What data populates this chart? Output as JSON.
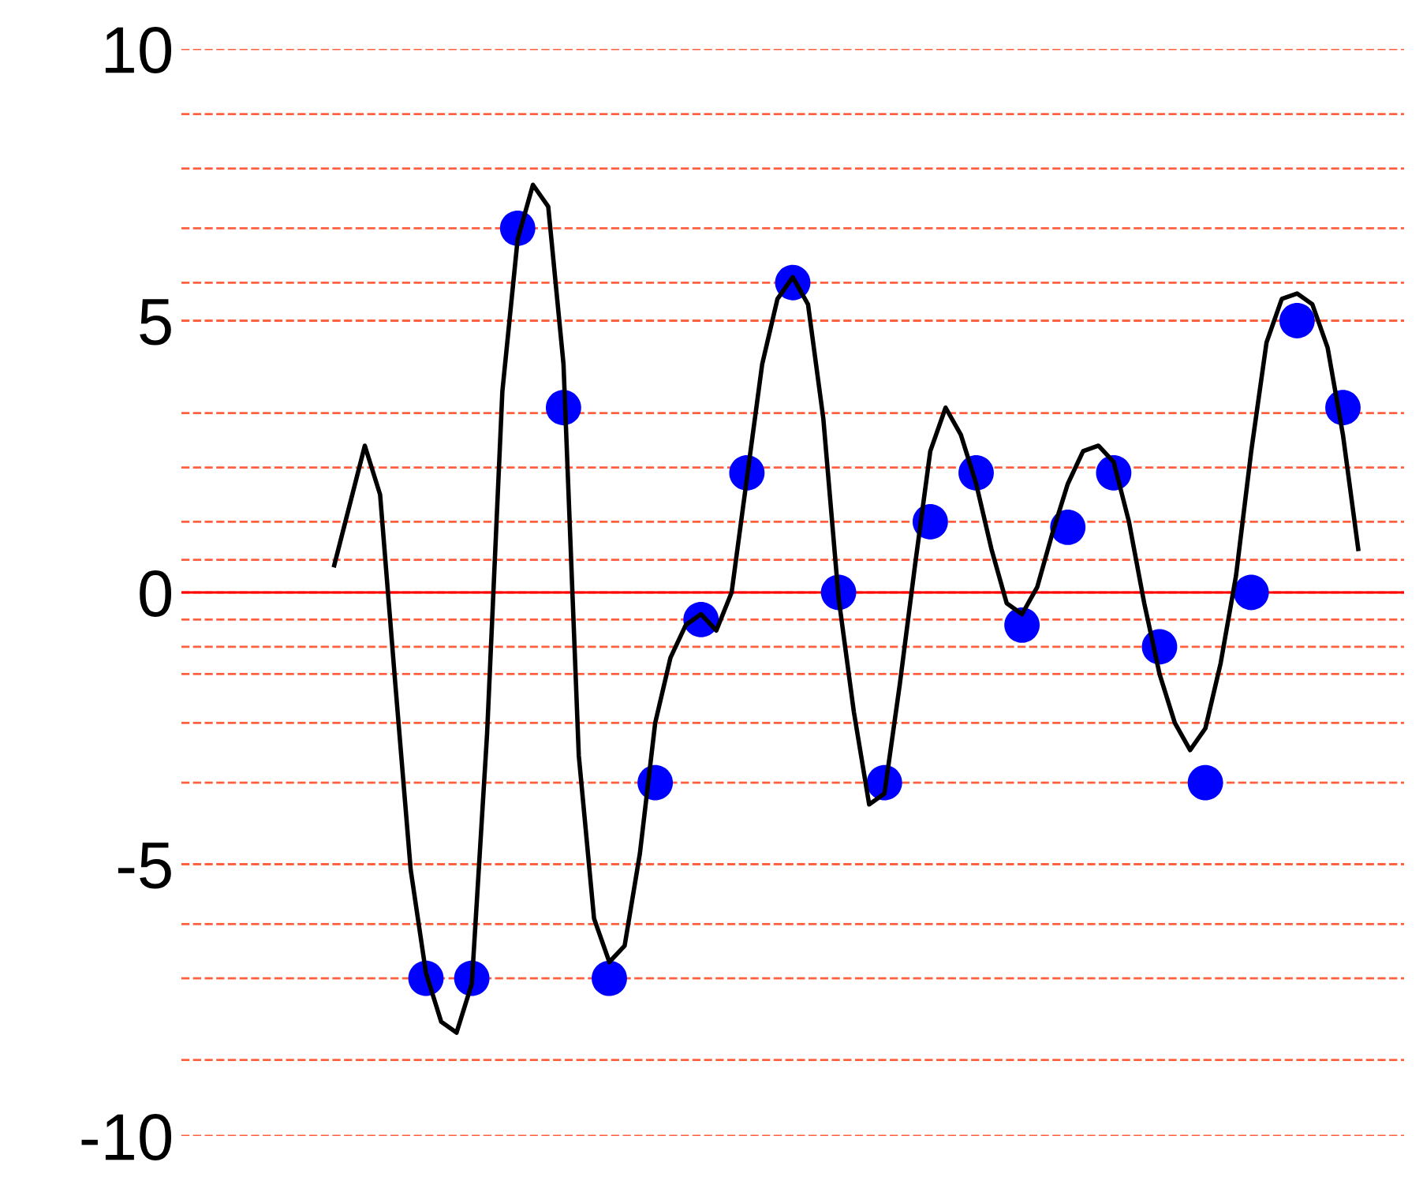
{
  "chart_data": {
    "type": "line",
    "categories": [
      null,
      null,
      null,
      null,
      null,
      null,
      null,
      null,
      null,
      null,
      null,
      null,
      null,
      null,
      null,
      null,
      null,
      null,
      null,
      null,
      null,
      null,
      null,
      null,
      null,
      null,
      null,
      null,
      null,
      null,
      null,
      null,
      null,
      null,
      null,
      null,
      null,
      null,
      null,
      null,
      null,
      null,
      null,
      null,
      null,
      null,
      null,
      null,
      null,
      null,
      null,
      null,
      null,
      null,
      null,
      null,
      null,
      null,
      null,
      null,
      null,
      null,
      null,
      null,
      null,
      null,
      null,
      null
    ],
    "series": [
      {
        "color": "#000000",
        "marker": "none",
        "line_style": "solid",
        "values": [
          0.5,
          1.6,
          2.7,
          1.8,
          -1.7,
          -5.1,
          -7.0,
          -7.9,
          -8.1,
          -7.2,
          -2.6,
          3.7,
          6.5,
          7.5,
          7.1,
          4.2,
          -3.0,
          -6.0,
          -6.8,
          -6.5,
          -4.8,
          -2.4,
          -1.2,
          -0.6,
          -0.4,
          -0.7,
          0.0,
          2.1,
          4.2,
          5.4,
          5.8,
          5.3,
          3.2,
          -0.1,
          -2.2,
          -3.9,
          -3.7,
          -1.7,
          0.5,
          2.6,
          3.4,
          2.9,
          2.0,
          0.8,
          -0.2,
          -0.4,
          0.1,
          1.1,
          2.0,
          2.6,
          2.7,
          2.4,
          1.3,
          -0.2,
          -1.5,
          -2.4,
          -2.9,
          -2.5,
          -1.3,
          0.3,
          2.6,
          4.6,
          5.4,
          5.5,
          5.3,
          4.5,
          2.9,
          0.8
        ]
      },
      {
        "type": "scatter",
        "color": "#0000ff",
        "marker": "circle",
        "values": [
          null,
          null,
          null,
          null,
          null,
          null,
          -7.1,
          null,
          null,
          -7.1,
          null,
          null,
          6.7,
          null,
          null,
          3.4,
          null,
          null,
          -7.1,
          null,
          null,
          -3.5,
          null,
          null,
          -0.5,
          null,
          null,
          2.2,
          null,
          null,
          5.7,
          null,
          null,
          0.0,
          null,
          null,
          -3.5,
          null,
          null,
          1.3,
          null,
          null,
          2.2,
          null,
          null,
          -0.6,
          null,
          null,
          1.2,
          null,
          null,
          2.2,
          null,
          null,
          -1.0,
          null,
          null,
          -3.5,
          null,
          null,
          0.0,
          null,
          null,
          5.0,
          null,
          null,
          3.4,
          null
        ]
      }
    ],
    "ylim": [
      -10,
      10
    ],
    "yticks": [
      10,
      {
        "value": 8.8,
        "label": null
      },
      {
        "value": 7.8,
        "label": null
      },
      {
        "value": 6.7,
        "label": null
      },
      {
        "value": 5.7,
        "label": null
      },
      5,
      {
        "value": 3.3,
        "label": null
      },
      {
        "value": 2.3,
        "label": null
      },
      {
        "value": 1.3,
        "label": null
      },
      {
        "value": 0.6,
        "label": null
      },
      0,
      {
        "value": -0.5,
        "label": null
      },
      {
        "value": -1.0,
        "label": null
      },
      {
        "value": -1.5,
        "label": null
      },
      {
        "value": -2.4,
        "label": null
      },
      {
        "value": -3.5,
        "label": null
      },
      -5,
      {
        "value": -6.1,
        "label": null
      },
      {
        "value": -7.1,
        "label": null
      },
      {
        "value": -8.6,
        "label": null
      },
      -10
    ],
    "grid": "y",
    "ref_lines": [
      {
        "axis": "y",
        "value": 0,
        "color": "#ff0000",
        "line_style": "solid"
      }
    ],
    "tick_labels": "y"
  }
}
